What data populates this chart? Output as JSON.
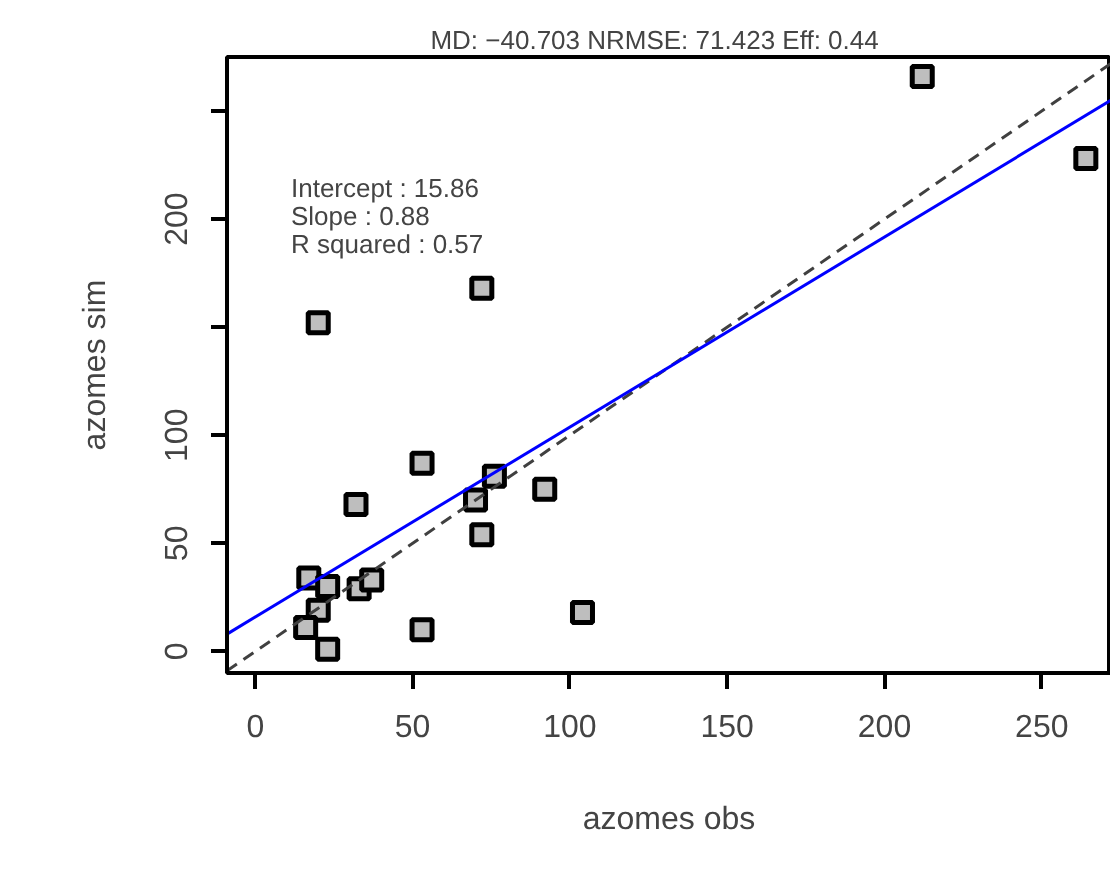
{
  "chart_data": {
    "type": "scatter",
    "title": "MD: −40.703   NRMSE: 71.423   Eff: 0.44",
    "xlabel": "azomes obs",
    "ylabel": "azomes sim",
    "xlim": [
      -9,
      272
    ],
    "ylim": [
      -10,
      275
    ],
    "xticks": [
      0,
      50,
      100,
      150,
      200,
      250
    ],
    "yticks": [
      0,
      50,
      100,
      {
        "value": 150,
        "label": null
      },
      200,
      {
        "value": 250,
        "label": null
      }
    ],
    "grid": false,
    "annotations": [
      "Intercept : 15.86",
      "Slope : 0.88",
      "R squared : 0.57"
    ],
    "series": [
      {
        "color": "#bebebe",
        "marker": "square",
        "x": [
          212,
          264,
          20,
          72,
          53,
          32,
          70,
          76,
          92,
          72,
          17,
          23,
          33,
          37,
          20,
          16,
          23,
          53,
          104
        ],
        "values": [
          266,
          228,
          152,
          168,
          87,
          68,
          70,
          81,
          75,
          54,
          34,
          30,
          29,
          33,
          19,
          11,
          1,
          10,
          18
        ]
      },
      {
        "type": "line",
        "color": "#404040",
        "line_style": "dashed",
        "x": [
          -9,
          272
        ],
        "values": [
          -9,
          272
        ]
      },
      {
        "type": "line",
        "color": "#0000ff",
        "line_style": "solid",
        "x": [
          -9,
          272
        ],
        "values": [
          8,
          255
        ]
      }
    ]
  }
}
